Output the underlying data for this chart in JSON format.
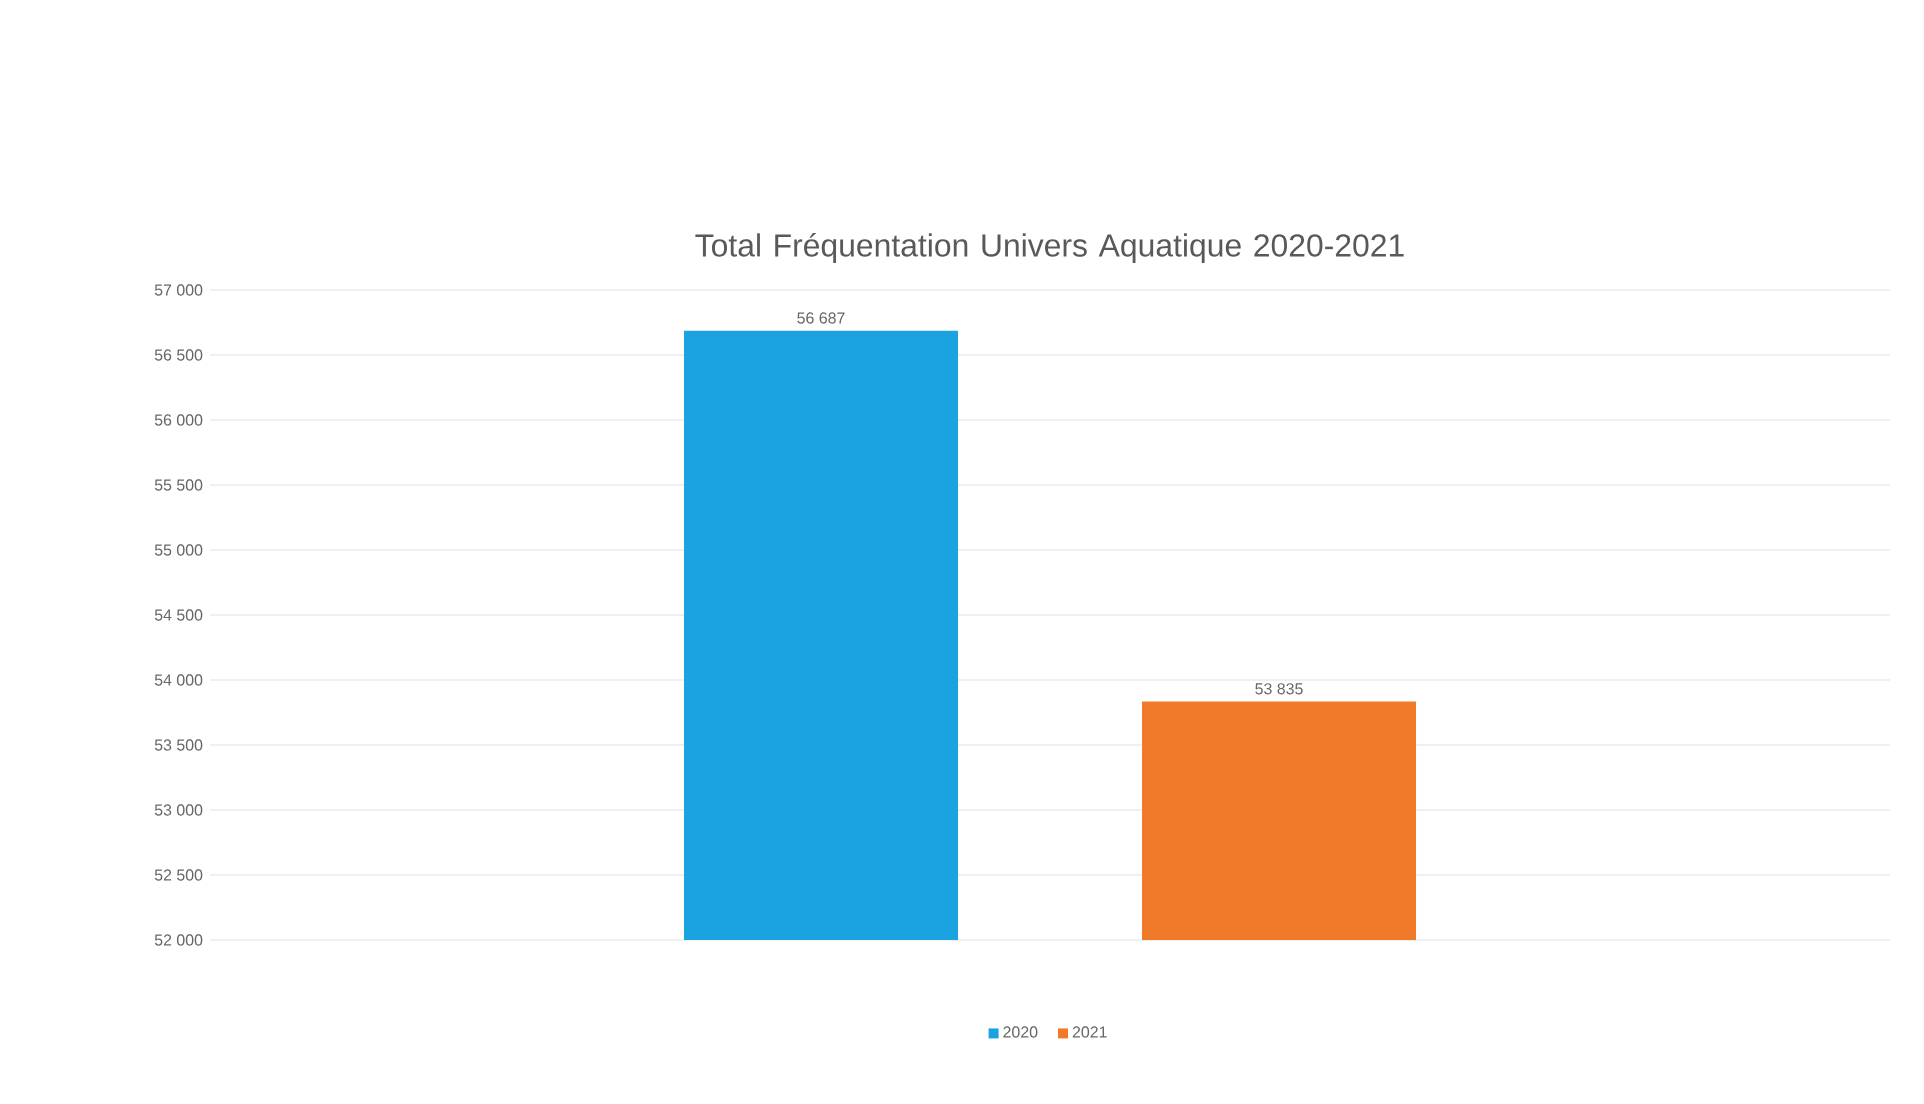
{
  "chart_data": {
    "type": "bar",
    "title": "Total Fréquentation Univers Aquatique 2020-2021",
    "categories": [
      null
    ],
    "series": [
      {
        "name": "2020",
        "color": "#1aa3e0",
        "values": [
          56687
        ],
        "value_labels": [
          "56 687"
        ]
      },
      {
        "name": "2021",
        "color": "#f07a2a",
        "values": [
          53835
        ],
        "value_labels": [
          "53 835"
        ]
      }
    ],
    "ylim": [
      52000,
      57000
    ],
    "yticks": [
      {
        "value": 52000,
        "label": "52 000"
      },
      {
        "value": 52500,
        "label": "52 500"
      },
      {
        "value": 53000,
        "label": "53 000"
      },
      {
        "value": 53500,
        "label": "53 500"
      },
      {
        "value": 54000,
        "label": "54 000"
      },
      {
        "value": 54500,
        "label": "54 500"
      },
      {
        "value": 55000,
        "label": "55 000"
      },
      {
        "value": 55500,
        "label": "55 500"
      },
      {
        "value": 56000,
        "label": "56 000"
      },
      {
        "value": 56500,
        "label": "56 500"
      },
      {
        "value": 57000,
        "label": "57 000"
      }
    ],
    "grid": "y",
    "legend": "bottom"
  }
}
